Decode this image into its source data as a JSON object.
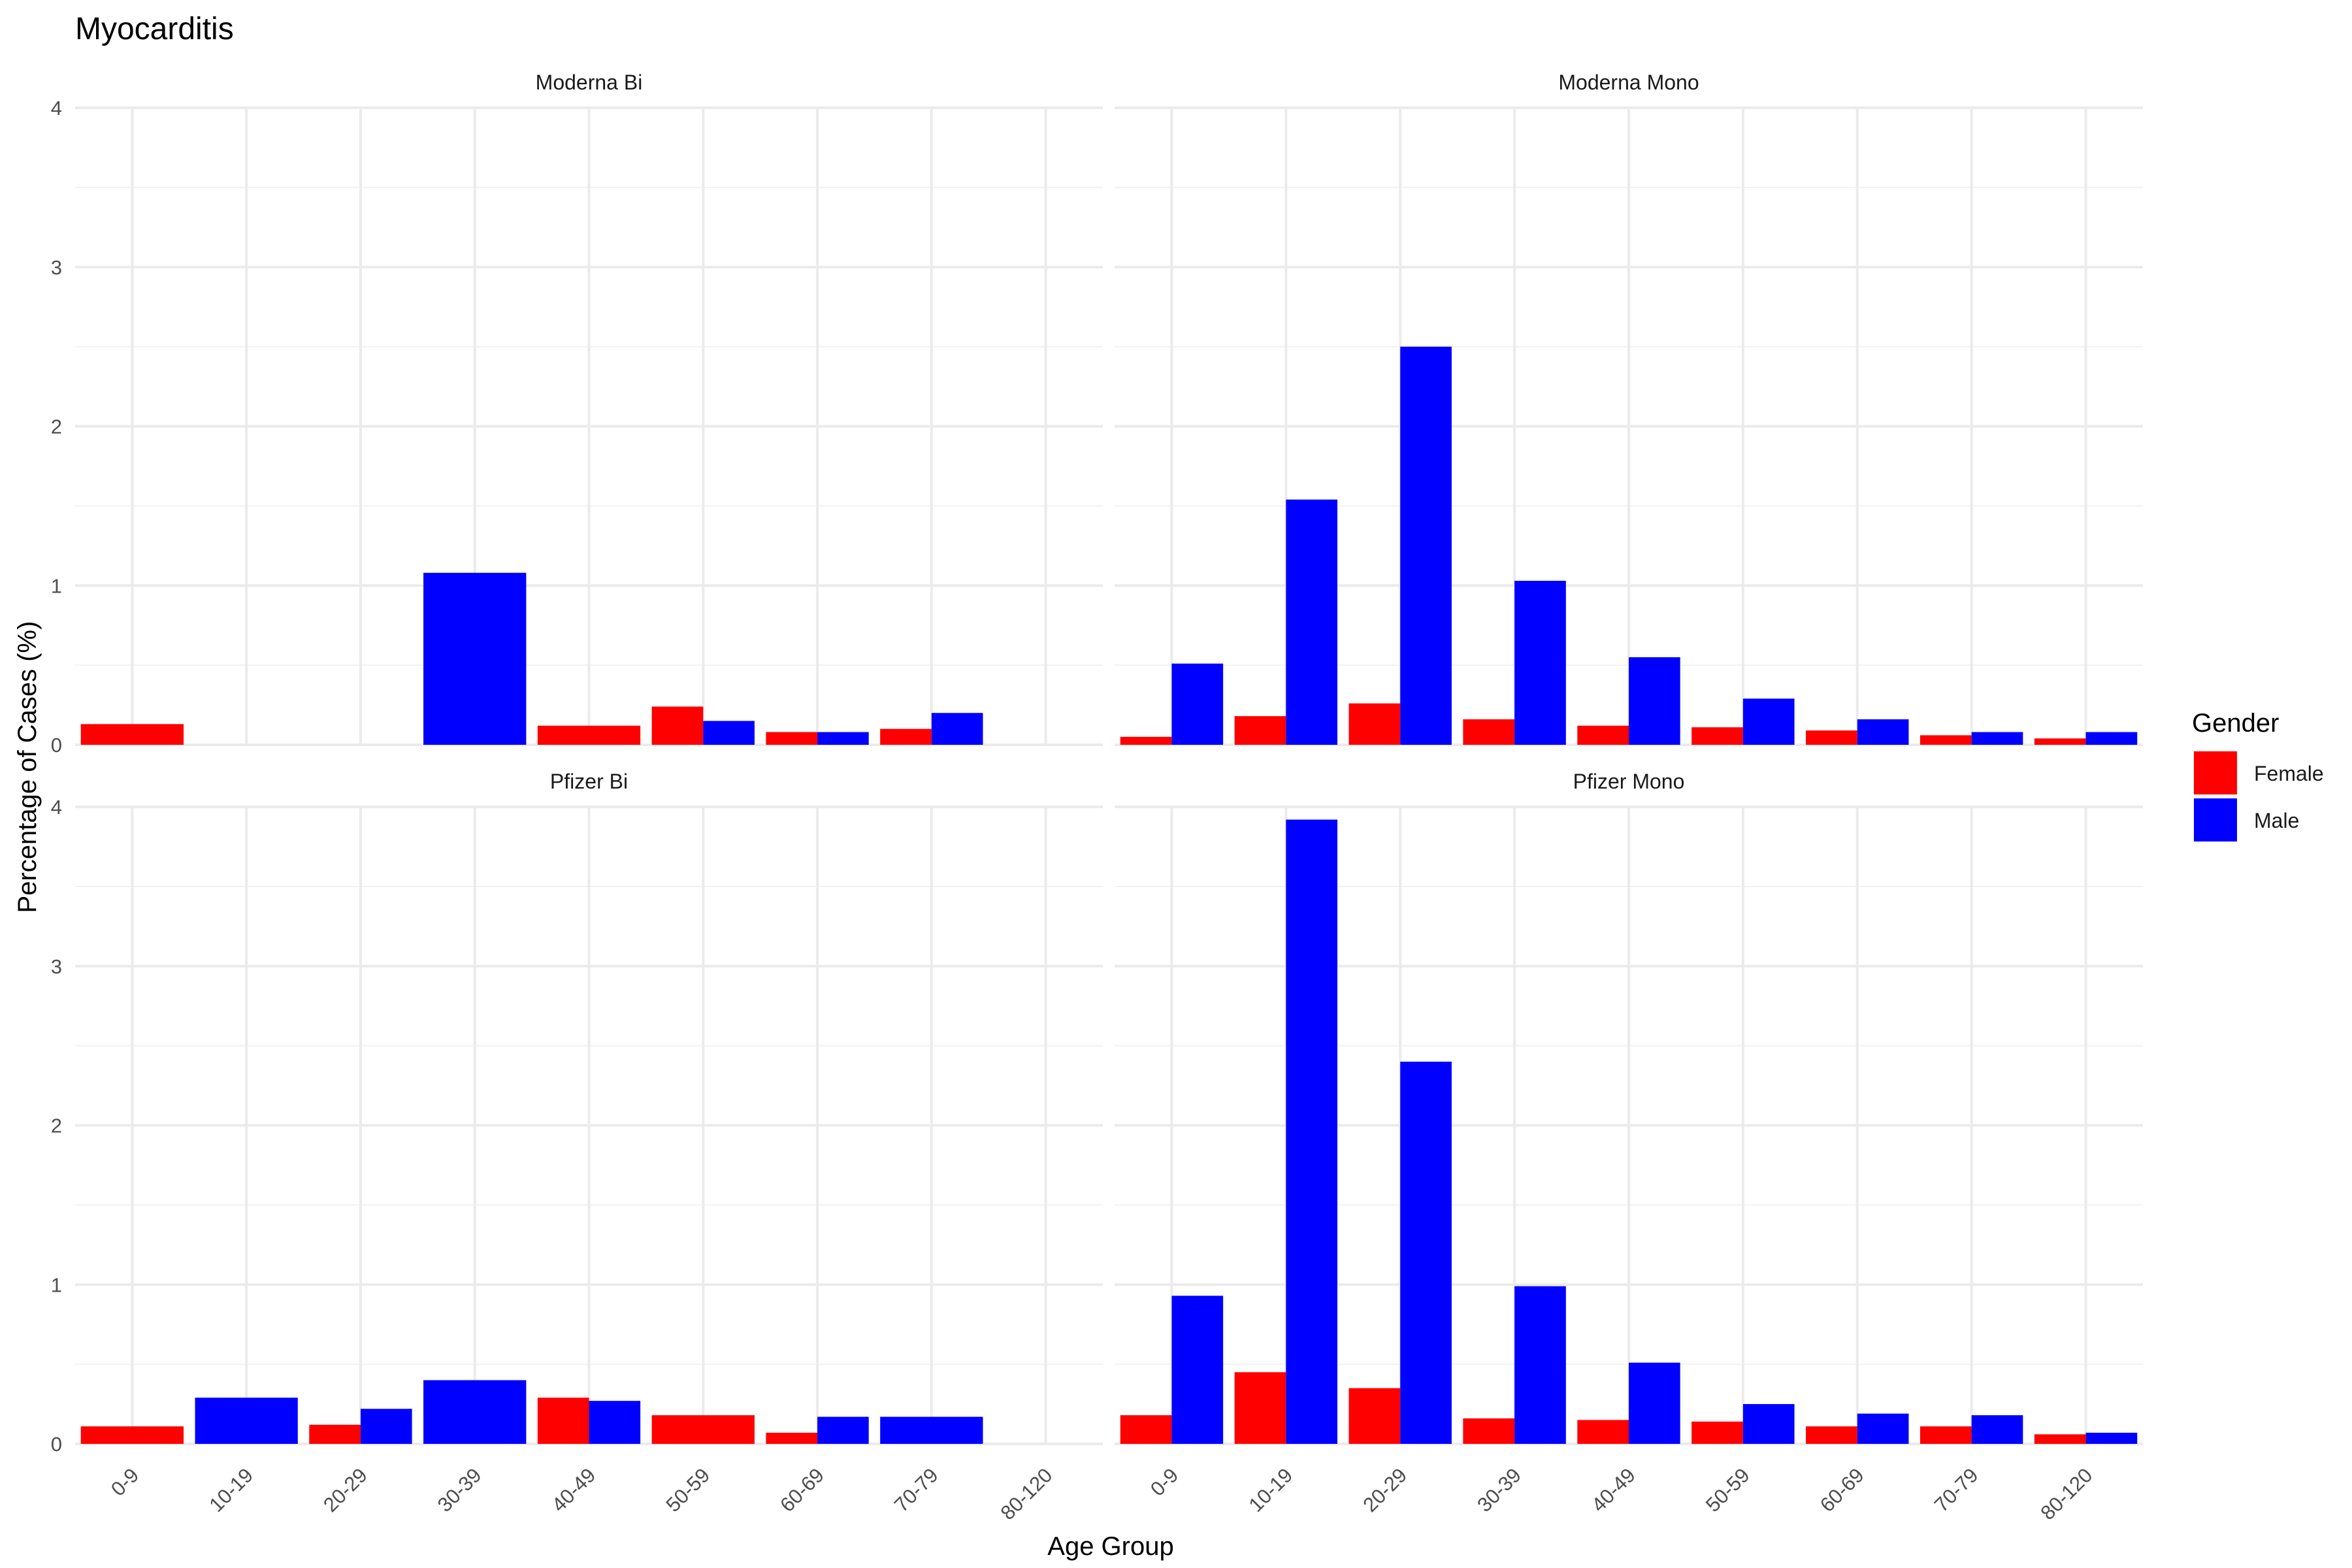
{
  "chart_data": {
    "type": "bar",
    "title": "Myocarditis",
    "xlabel": "Age Group",
    "ylabel": "Percentage of Cases (%)",
    "ylim": [
      0,
      4
    ],
    "y_ticks": [
      0,
      1,
      2,
      3,
      4
    ],
    "grid": true,
    "legend_position": "right",
    "legend_title": "Gender",
    "colors": {
      "Female": "#ff0000",
      "Male": "#0000ff"
    },
    "categories": [
      "0-9",
      "10-19",
      "20-29",
      "30-39",
      "40-49",
      "50-59",
      "60-69",
      "70-79",
      "80-120"
    ],
    "facets": [
      {
        "name": "Moderna Bi",
        "series": [
          {
            "name": "Female",
            "values": [
              0.13,
              null,
              null,
              null,
              0.12,
              0.24,
              0.08,
              0.1,
              null
            ]
          },
          {
            "name": "Male",
            "values": [
              null,
              null,
              null,
              1.08,
              null,
              0.15,
              0.08,
              0.2,
              null
            ]
          }
        ]
      },
      {
        "name": "Moderna Mono",
        "series": [
          {
            "name": "Female",
            "values": [
              0.05,
              0.18,
              0.26,
              0.16,
              0.12,
              0.11,
              0.09,
              0.06,
              0.04
            ]
          },
          {
            "name": "Male",
            "values": [
              0.51,
              1.54,
              2.5,
              1.03,
              0.55,
              0.29,
              0.16,
              0.08,
              0.08
            ]
          }
        ]
      },
      {
        "name": "Pfizer Bi",
        "series": [
          {
            "name": "Female",
            "values": [
              0.11,
              null,
              0.12,
              null,
              0.29,
              0.18,
              0.07,
              null,
              null
            ]
          },
          {
            "name": "Male",
            "values": [
              null,
              0.29,
              0.22,
              0.4,
              0.27,
              null,
              0.17,
              0.17,
              null
            ]
          }
        ]
      },
      {
        "name": "Pfizer Mono",
        "series": [
          {
            "name": "Female",
            "values": [
              0.18,
              0.45,
              0.35,
              0.16,
              0.15,
              0.14,
              0.11,
              0.11,
              0.06
            ]
          },
          {
            "name": "Male",
            "values": [
              0.93,
              3.92,
              2.4,
              0.99,
              0.51,
              0.25,
              0.19,
              0.18,
              0.07
            ]
          }
        ]
      }
    ]
  }
}
